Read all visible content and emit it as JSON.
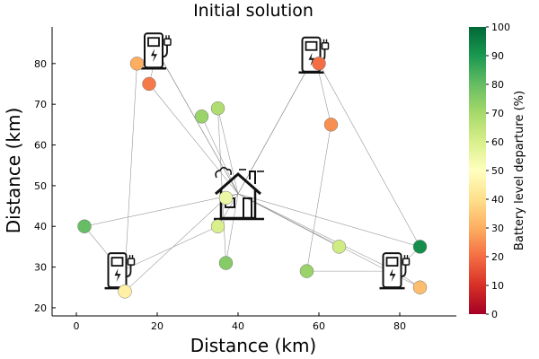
{
  "chart_data": {
    "type": "scatter",
    "title": "Initial solution",
    "xlabel": "Distance (km)",
    "ylabel": "Distance (km)",
    "xlim": [
      -6,
      94
    ],
    "ylim": [
      18,
      89
    ],
    "x_ticks": [
      "0",
      "20",
      "40",
      "60",
      "80"
    ],
    "y_ticks": [
      "20",
      "30",
      "40",
      "50",
      "60",
      "70",
      "80"
    ],
    "grid": false,
    "depot": {
      "x": 40,
      "y": 48
    },
    "stations": [
      {
        "x": 20,
        "y": 83
      },
      {
        "x": 59,
        "y": 82
      },
      {
        "x": 11,
        "y": 29
      },
      {
        "x": 79,
        "y": 29
      }
    ],
    "points": [
      {
        "x": 15,
        "y": 80,
        "battery": 30
      },
      {
        "x": 18,
        "y": 75,
        "battery": 22
      },
      {
        "x": 31,
        "y": 67,
        "battery": 72
      },
      {
        "x": 35,
        "y": 69,
        "battery": 68
      },
      {
        "x": 60,
        "y": 80,
        "battery": 20
      },
      {
        "x": 63,
        "y": 65,
        "battery": 25
      },
      {
        "x": 2,
        "y": 40,
        "battery": 80
      },
      {
        "x": 37,
        "y": 47,
        "battery": 55
      },
      {
        "x": 35,
        "y": 40,
        "battery": 60
      },
      {
        "x": 37,
        "y": 31,
        "battery": 75
      },
      {
        "x": 12,
        "y": 24,
        "battery": 45
      },
      {
        "x": 65,
        "y": 35,
        "battery": 62
      },
      {
        "x": 57,
        "y": 29,
        "battery": 72
      },
      {
        "x": 85,
        "y": 35,
        "battery": 92
      },
      {
        "x": 85,
        "y": 25,
        "battery": 33
      }
    ],
    "routes": [
      [
        [
          40,
          48
        ],
        [
          20,
          83
        ],
        [
          15,
          80
        ],
        [
          12,
          28
        ],
        [
          2,
          40
        ],
        [
          40,
          48
        ]
      ],
      [
        [
          40,
          48
        ],
        [
          20,
          83
        ],
        [
          18,
          75
        ],
        [
          40,
          48
        ]
      ],
      [
        [
          40,
          48
        ],
        [
          31,
          67
        ],
        [
          40,
          48
        ]
      ],
      [
        [
          40,
          48
        ],
        [
          35,
          69
        ],
        [
          37,
          31
        ],
        [
          40,
          48
        ]
      ],
      [
        [
          40,
          48
        ],
        [
          59,
          82
        ],
        [
          60,
          80
        ],
        [
          85,
          35
        ],
        [
          40,
          48
        ]
      ],
      [
        [
          40,
          48
        ],
        [
          59,
          82
        ],
        [
          63,
          65
        ],
        [
          57,
          29
        ],
        [
          79,
          29
        ],
        [
          85,
          35
        ]
      ],
      [
        [
          40,
          48
        ],
        [
          37,
          47
        ],
        [
          12,
          24
        ],
        [
          11,
          29
        ],
        [
          35,
          40
        ],
        [
          40,
          48
        ]
      ],
      [
        [
          40,
          48
        ],
        [
          65,
          35
        ],
        [
          40,
          48
        ]
      ],
      [
        [
          40,
          48
        ],
        [
          79,
          29
        ],
        [
          85,
          25
        ],
        [
          40,
          48
        ]
      ]
    ],
    "colorbar": {
      "label": "Battery level departure (%)",
      "range": [
        0,
        100
      ],
      "ticks": [
        "0",
        "10",
        "20",
        "30",
        "40",
        "50",
        "60",
        "70",
        "80",
        "90",
        "100"
      ],
      "colormap": [
        "#a50026",
        "#d73027",
        "#f46d43",
        "#fdae61",
        "#fee08b",
        "#ffffbf",
        "#d9ef8b",
        "#a6d96a",
        "#66bd63",
        "#1a9850",
        "#006837"
      ]
    }
  }
}
